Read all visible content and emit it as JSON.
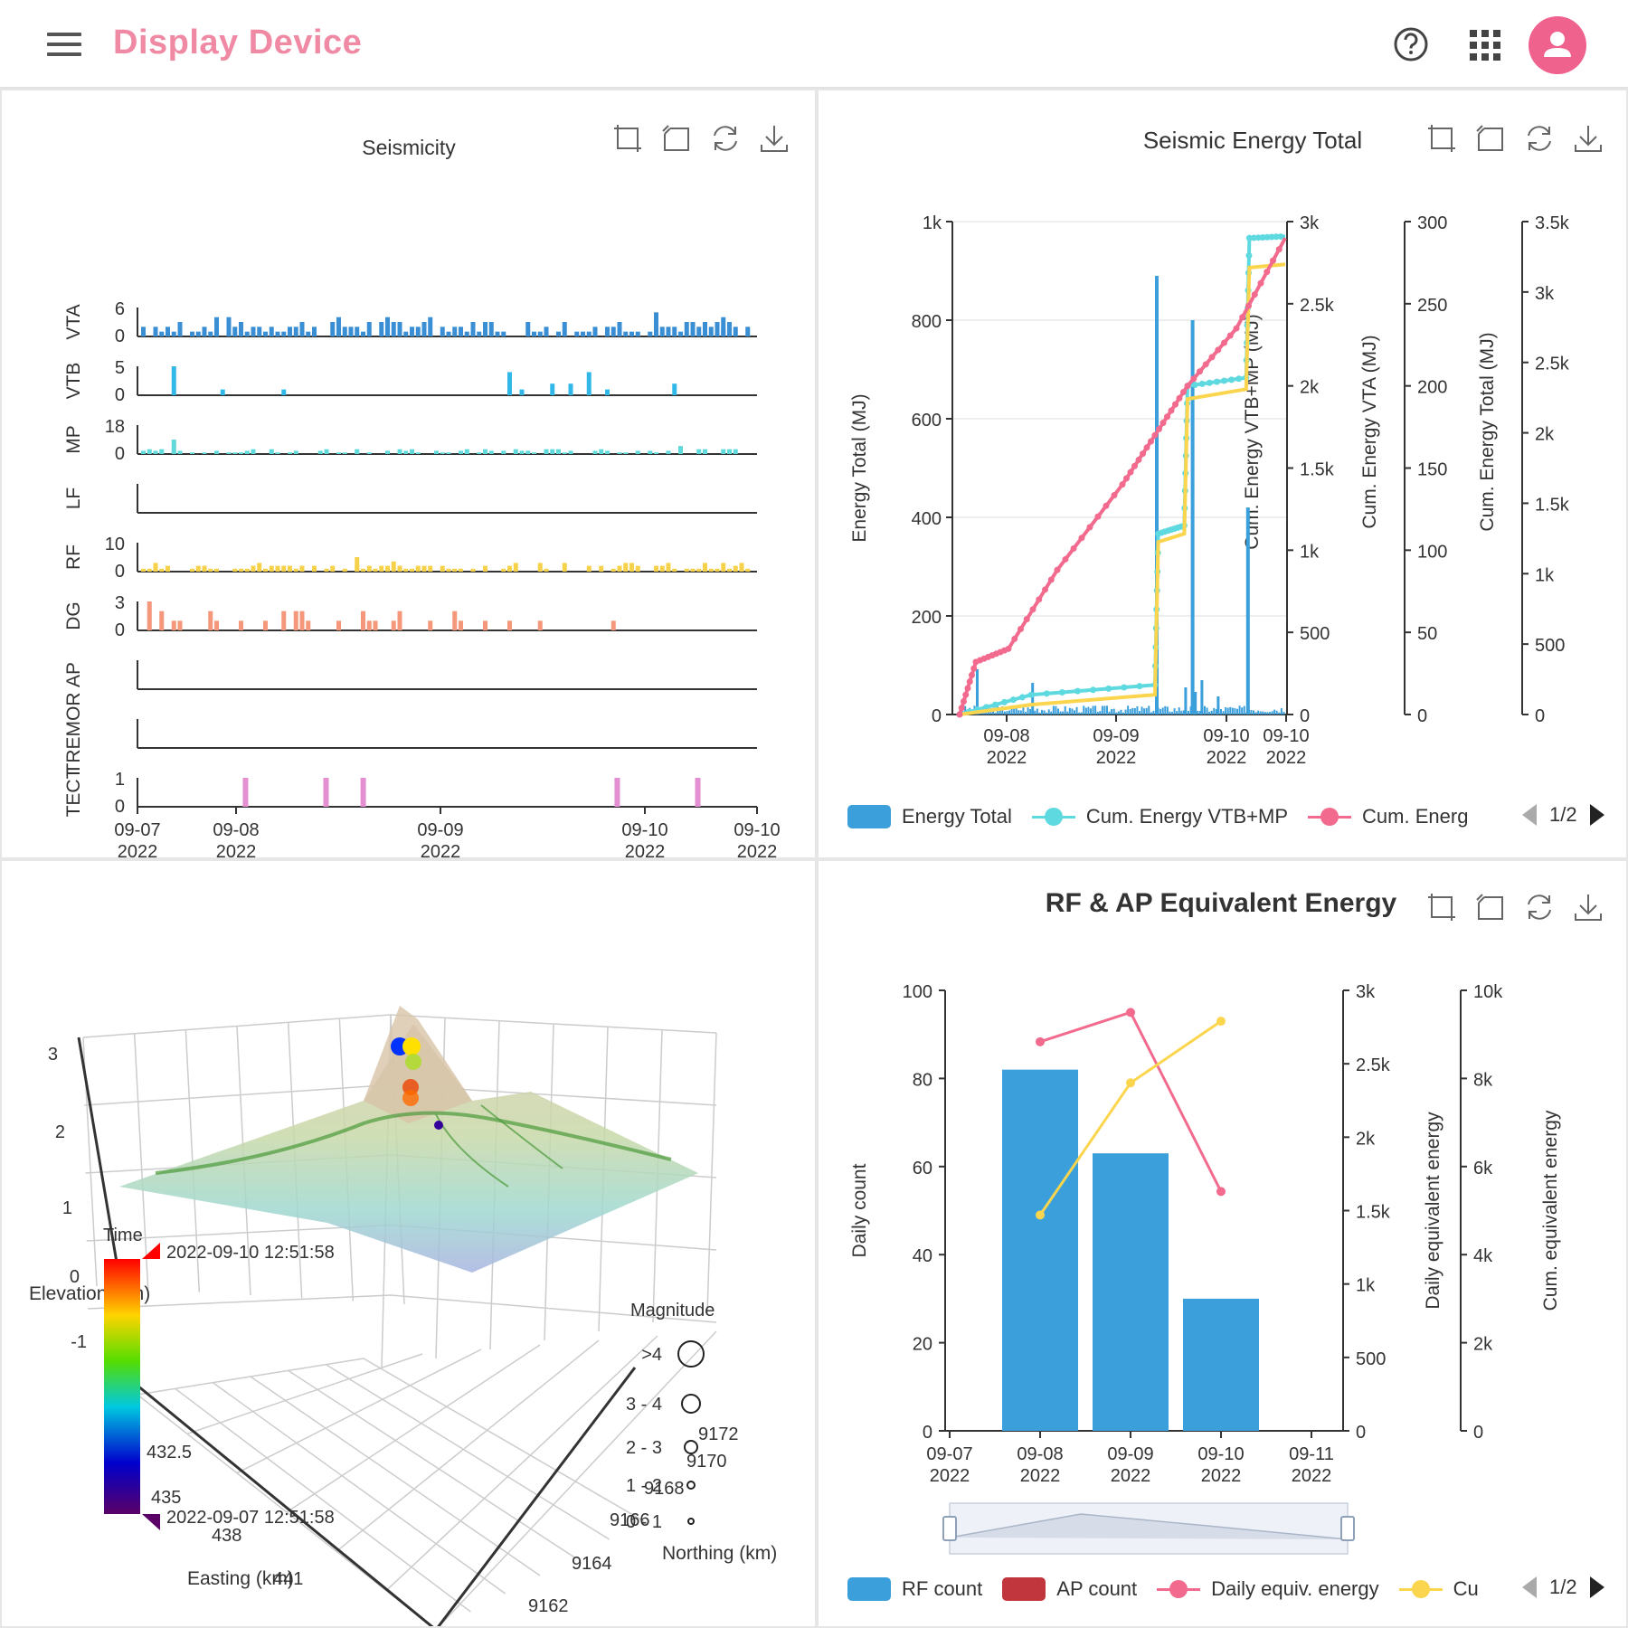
{
  "app": {
    "title": "Display Device"
  },
  "panels": {
    "seismicity": {
      "title": "Seismicity",
      "rows": [
        {
          "name": "VTA",
          "max": "6",
          "color": "#3a8fd4"
        },
        {
          "name": "VTB",
          "max": "5",
          "color": "#32b8e8"
        },
        {
          "name": "MP",
          "max": "18",
          "color": "#5fd9d9"
        },
        {
          "name": "LF",
          "max": "",
          "color": "#999999"
        },
        {
          "name": "RF",
          "max": "10",
          "color": "#f6d24a"
        },
        {
          "name": "DG",
          "max": "3",
          "color": "#f4977a"
        },
        {
          "name": "AP",
          "max": "",
          "color": "#999999"
        },
        {
          "name": "TREMOR",
          "max": "",
          "color": "#999999"
        },
        {
          "name": "TECT",
          "max": "1",
          "color": "#e38fd1"
        }
      ],
      "zero_label": "0",
      "x_ticks": [
        "09-07\n2022",
        "09-08\n2022",
        "09-09\n2022",
        "09-10\n2022",
        "09-10\n2022"
      ],
      "vtb_bars": [
        [
          0.05,
          5
        ],
        [
          0.13,
          1
        ],
        [
          0.23,
          1
        ],
        [
          0.6,
          4
        ],
        [
          0.62,
          1
        ],
        [
          0.67,
          2
        ],
        [
          0.7,
          2
        ],
        [
          0.73,
          4
        ],
        [
          0.76,
          1
        ],
        [
          0.87,
          2
        ]
      ],
      "dg_bars": [
        [
          0.01,
          3
        ],
        [
          0.03,
          2
        ],
        [
          0.05,
          1
        ],
        [
          0.06,
          1
        ],
        [
          0.11,
          2
        ],
        [
          0.12,
          1
        ],
        [
          0.16,
          1
        ],
        [
          0.2,
          1
        ],
        [
          0.23,
          2
        ],
        [
          0.25,
          2
        ],
        [
          0.26,
          2
        ],
        [
          0.27,
          1
        ],
        [
          0.32,
          1
        ],
        [
          0.36,
          2
        ],
        [
          0.37,
          1
        ],
        [
          0.38,
          1
        ],
        [
          0.41,
          1
        ],
        [
          0.42,
          2
        ],
        [
          0.47,
          1
        ],
        [
          0.51,
          2
        ],
        [
          0.52,
          1
        ],
        [
          0.56,
          1
        ],
        [
          0.6,
          1
        ],
        [
          0.65,
          1
        ],
        [
          0.77,
          1
        ]
      ],
      "tect_bars": [
        0.17,
        0.3,
        0.36,
        0.77,
        0.9
      ]
    },
    "energy_total": {
      "title": "Seismic Energy Total",
      "left_axis": {
        "label": "Energy Total (MJ)",
        "ticks": [
          "1k",
          "800",
          "600",
          "400",
          "200",
          "0"
        ]
      },
      "right_axes": [
        {
          "label": "Cum. Energy VTB+MP (MJ)",
          "ticks": [
            "3k",
            "2.5k",
            "2k",
            "1.5k",
            "1k",
            "500",
            "0"
          ]
        },
        {
          "label": "Cum. Energy VTA (MJ)",
          "ticks": [
            "300",
            "250",
            "200",
            "150",
            "100",
            "50",
            "0"
          ]
        },
        {
          "label": "Cum. Energy Total (MJ)",
          "ticks": [
            "3.5k",
            "3k",
            "2.5k",
            "2k",
            "1.5k",
            "1k",
            "500",
            "0"
          ]
        }
      ],
      "x_ticks": [
        "09-08\n2022",
        "09-09\n2022",
        "09-10\n2022",
        "09-10\n2022"
      ],
      "legend": [
        {
          "label": "Energy Total",
          "type": "bar",
          "color": "#3a9fda"
        },
        {
          "label": "Cum. Energy VTB+MP",
          "type": "line",
          "color": "#5fd9e0"
        },
        {
          "label": "Cum. Energ",
          "type": "line",
          "color": "#f26a8d"
        }
      ],
      "pager": "1/2"
    },
    "surface3d": {
      "z_axis_label": "Elevation (km)",
      "z_ticks": [
        "3",
        "2",
        "1",
        "0",
        "-1"
      ],
      "easting_label": "Easting (km)",
      "easting_ticks": [
        "435",
        "438",
        "441",
        "432.5"
      ],
      "northing_label": "Northing (km)",
      "northing_ticks": [
        "9172",
        "9170",
        "9168",
        "9166",
        "9164",
        "9162"
      ],
      "time_label": "Time",
      "time_max": "2022-09-10 12:51:58",
      "time_min": "2022-09-07 12:51:58",
      "magnitude_label": "Magnitude",
      "magnitudes": [
        ">4",
        "3 - 4",
        "2 - 3",
        "1 - 2",
        "0 - 1"
      ]
    },
    "rf_ap": {
      "title": "RF & AP Equivalent Energy",
      "left_axis": {
        "label": "Daily count",
        "ticks": [
          "100",
          "80",
          "60",
          "40",
          "20",
          "0"
        ]
      },
      "right_axes": [
        {
          "label": "Daily equivalent energy",
          "ticks": [
            "3k",
            "2.5k",
            "2k",
            "1.5k",
            "1k",
            "500",
            "0"
          ]
        },
        {
          "label": "Cum. equivalent energy",
          "ticks": [
            "10k",
            "8k",
            "6k",
            "4k",
            "2k",
            "0"
          ]
        }
      ],
      "legend": [
        {
          "label": "RF count",
          "type": "bar",
          "color": "#3a9fda"
        },
        {
          "label": "AP count",
          "type": "bar",
          "color": "#c1353d"
        },
        {
          "label": "Daily equiv. energy",
          "type": "line",
          "color": "#f26a8d"
        },
        {
          "label": "Cu",
          "type": "line",
          "color": "#fbd54e"
        }
      ],
      "pager": "1/2"
    }
  },
  "chart_data": [
    {
      "type": "bar",
      "title": "RF & AP Equivalent Energy",
      "categories": [
        "09-07\n2022",
        "09-08\n2022",
        "09-09\n2022",
        "09-10\n2022",
        "09-11\n2022"
      ],
      "series": [
        {
          "name": "RF count",
          "values": [
            0,
            82,
            63,
            30,
            0
          ]
        },
        {
          "name": "Daily equiv. energy",
          "values": [
            null,
            2650,
            2850,
            1630,
            null
          ]
        },
        {
          "name": "Cu",
          "values": [
            null,
            4900,
            7900,
            9300,
            null
          ]
        }
      ],
      "ylim": [
        0,
        100
      ]
    },
    {
      "type": "line",
      "title": "Seismic Energy Total",
      "series": [
        {
          "name": "Energy Total",
          "spikes": [
            [
              0.6,
              890
            ],
            [
              0.71,
              800
            ],
            [
              0.88,
              420
            ]
          ]
        },
        {
          "name": "Cum. Energy VTB+MP",
          "values": [
            [
              0.0,
              0
            ],
            [
              0.22,
              120
            ],
            [
              0.6,
              180
            ],
            [
              0.61,
              1100
            ],
            [
              0.69,
              1150
            ],
            [
              0.7,
              2000
            ],
            [
              0.88,
              2050
            ],
            [
              0.89,
              2900
            ],
            [
              1.0,
              2910
            ]
          ]
        },
        {
          "name": "Cum. Energ",
          "values": [
            [
              0.0,
              0
            ],
            [
              0.05,
              320
            ],
            [
              0.15,
              400
            ],
            [
              0.3,
              880
            ],
            [
              0.5,
              1400
            ],
            [
              0.6,
              1700
            ],
            [
              0.7,
              2000
            ],
            [
              0.85,
              2350
            ],
            [
              1.0,
              2900
            ]
          ]
        }
      ]
    }
  ]
}
